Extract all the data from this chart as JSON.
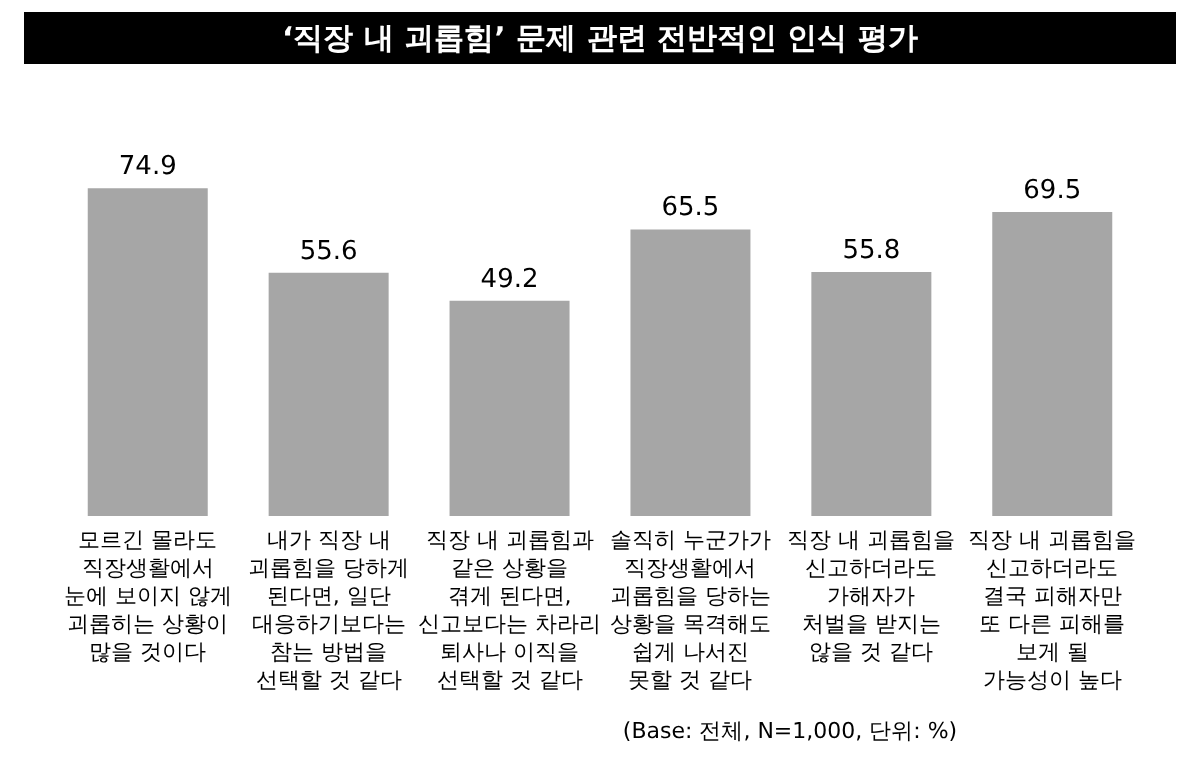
{
  "chart_data": {
    "type": "bar",
    "title": "‘직장 내 괴롭힘’ 문제 관련 전반적인 인식 평가",
    "categories": [
      "모르긴 몰라도\n직장생활에서\n눈에 보이지 않게\n괴롭히는 상황이\n많을 것이다",
      "내가 직장 내\n괴롭힘을 당하게\n된다면, 일단\n대응하기보다는\n참는 방법을\n선택할 것 같다",
      "직장 내 괴롭힘과\n같은 상황을\n겪게 된다면,\n신고보다는 차라리\n퇴사나 이직을\n선택할 것 같다",
      "솔직히 누군가가\n직장생활에서\n괴롭힘을 당하는\n상황을 목격해도\n쉽게 나서진\n못할 것 같다",
      "직장 내 괴롭힘을\n신고하더라도\n가해자가\n처벌을 받지는\n않을 것 같다",
      "직장 내 괴롭힘을\n신고하더라도\n결국 피해자만\n또 다른 피해를\n보게 될\n가능성이 높다"
    ],
    "values": [
      74.9,
      55.6,
      49.2,
      65.5,
      55.8,
      69.5
    ],
    "color": "#a6a6a6",
    "data_labels": true,
    "annotations": [
      "(Base: 전체, N=1,000, 단위: %)"
    ]
  }
}
